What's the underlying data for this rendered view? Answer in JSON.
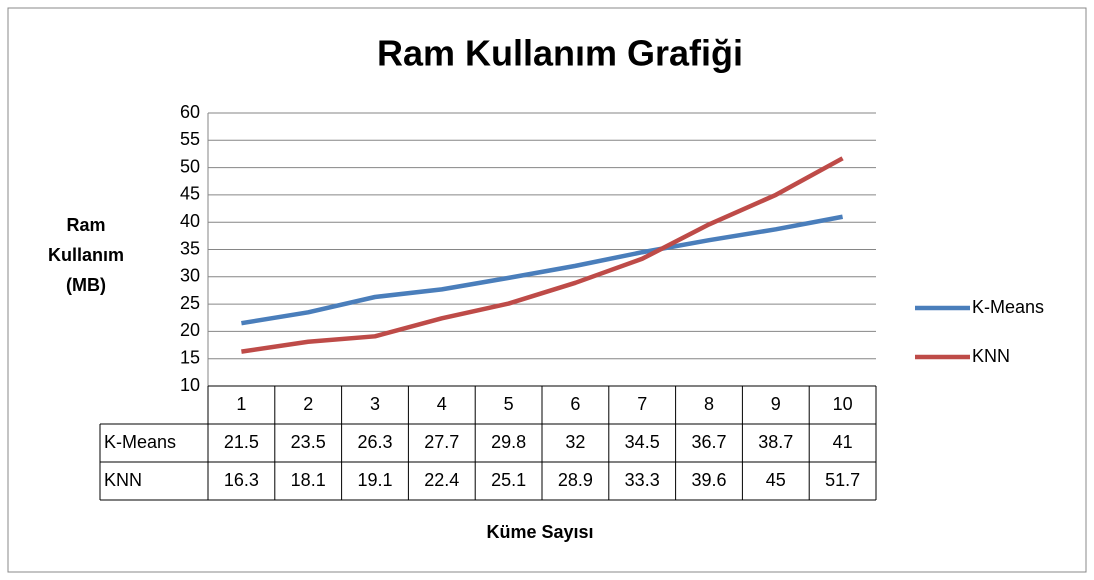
{
  "chart_data": {
    "type": "line",
    "title": "Ram Kullanım Grafiği",
    "ylabel": "Ram Kullanım (MB)",
    "xlabel": "Küme Sayısı",
    "categories": [
      "1",
      "2",
      "3",
      "4",
      "5",
      "6",
      "7",
      "8",
      "9",
      "10"
    ],
    "series": [
      {
        "name": "K-Means",
        "color": "#4a7ebb",
        "values": [
          21.5,
          23.5,
          26.3,
          27.7,
          29.8,
          32,
          34.5,
          36.7,
          38.7,
          41
        ]
      },
      {
        "name": "KNN",
        "color": "#be4b48",
        "values": [
          16.3,
          18.1,
          19.1,
          22.4,
          25.1,
          28.9,
          33.3,
          39.6,
          45,
          51.7
        ]
      }
    ],
    "ylim": [
      10,
      60
    ],
    "yticks": [
      10,
      15,
      20,
      25,
      30,
      35,
      40,
      45,
      50,
      55,
      60
    ],
    "grid": true,
    "legend": "right"
  }
}
